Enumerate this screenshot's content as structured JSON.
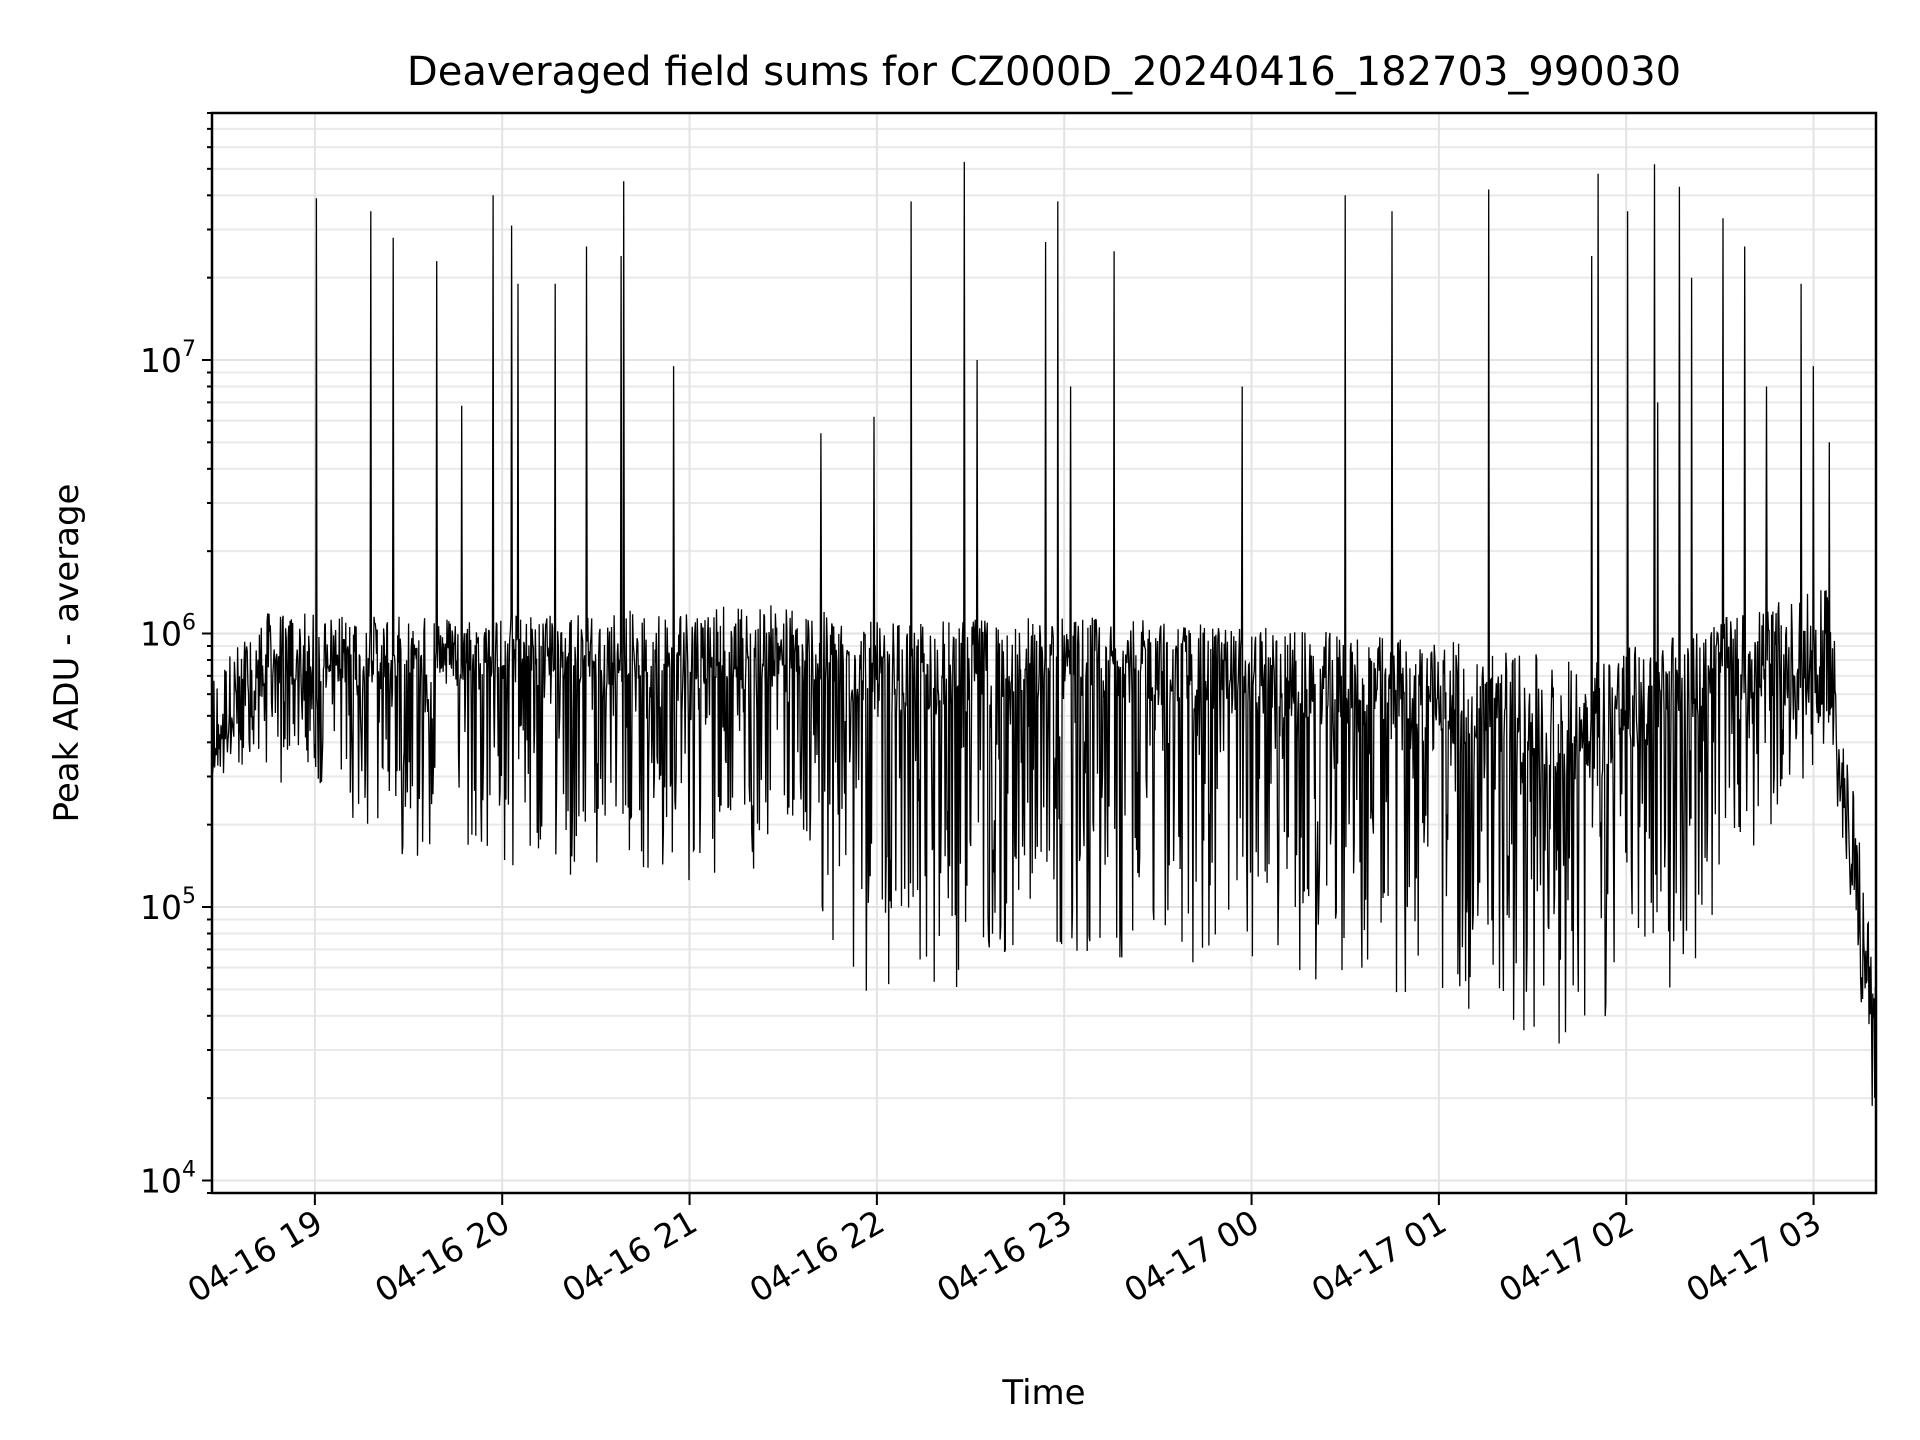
{
  "chart_data": {
    "type": "line",
    "title": "Deaveraged field sums for CZ000D_20240416_182703_990030",
    "xlabel": "Time",
    "ylabel": "Peak ADU - average",
    "yscale": "log",
    "xlim": [
      "2024-04-16T18:27:03",
      "2024-04-17T03:20:00"
    ],
    "ylim": [
      9000,
      80000000
    ],
    "grid": "on (major and minor, light gray)",
    "x_ticks": [
      "04-16 19",
      "04-16 20",
      "04-16 21",
      "04-16 22",
      "04-16 23",
      "04-17 00",
      "04-17 01",
      "04-17 02",
      "04-17 03"
    ],
    "x_tick_times": [
      "2024-04-16T19:00:00",
      "2024-04-16T20:00:00",
      "2024-04-16T21:00:00",
      "2024-04-16T22:00:00",
      "2024-04-16T23:00:00",
      "2024-04-17T00:00:00",
      "2024-04-17T01:00:00",
      "2024-04-17T02:00:00",
      "2024-04-17T03:00:00"
    ],
    "y_ticks": [
      {
        "value": 10000,
        "base": "10",
        "exp": "4"
      },
      {
        "value": 100000,
        "base": "10",
        "exp": "5"
      },
      {
        "value": 1000000,
        "base": "10",
        "exp": "6"
      },
      {
        "value": 10000000,
        "base": "10",
        "exp": "7"
      }
    ],
    "series_color": "#000000",
    "series": [
      {
        "baseline_envelope": [
          {
            "time": "2024-04-16T18:27:03",
            "median": 380000,
            "low": 280000,
            "high": 1200000
          },
          {
            "time": "2024-04-16T18:45:00",
            "median": 800000,
            "low": 300000,
            "high": 1600000
          },
          {
            "time": "2024-04-16T19:30:00",
            "median": 800000,
            "low": 150000,
            "high": 1500000
          },
          {
            "time": "2024-04-16T20:30:00",
            "median": 800000,
            "low": 120000,
            "high": 1600000
          },
          {
            "time": "2024-04-16T21:30:00",
            "median": 800000,
            "low": 130000,
            "high": 1800000
          },
          {
            "time": "2024-04-16T22:00:00",
            "median": 650000,
            "low": 40000,
            "high": 1600000
          },
          {
            "time": "2024-04-16T23:00:00",
            "median": 750000,
            "low": 70000,
            "high": 1600000
          },
          {
            "time": "2024-04-17T00:00:00",
            "median": 650000,
            "low": 55000,
            "high": 1500000
          },
          {
            "time": "2024-04-17T01:00:00",
            "median": 550000,
            "low": 45000,
            "high": 1400000
          },
          {
            "time": "2024-04-17T01:45:00",
            "median": 400000,
            "low": 28000,
            "high": 1300000
          },
          {
            "time": "2024-04-17T02:30:00",
            "median": 750000,
            "low": 70000,
            "high": 1500000
          },
          {
            "time": "2024-04-17T03:05:00",
            "median": 700000,
            "low": 400000,
            "high": 2500000
          },
          {
            "time": "2024-04-17T03:20:00",
            "median": 30000,
            "low": 14000,
            "high": 80000
          }
        ],
        "peaks": [
          {
            "time": "2024-04-16T19:00:30",
            "value": 39000000
          },
          {
            "time": "2024-04-16T19:18:00",
            "value": 35000000
          },
          {
            "time": "2024-04-16T19:25:00",
            "value": 28000000
          },
          {
            "time": "2024-04-16T19:39:00",
            "value": 23000000
          },
          {
            "time": "2024-04-16T19:47:00",
            "value": 6800000
          },
          {
            "time": "2024-04-16T19:57:00",
            "value": 40000000
          },
          {
            "time": "2024-04-16T20:03:00",
            "value": 31000000
          },
          {
            "time": "2024-04-16T20:05:00",
            "value": 19000000
          },
          {
            "time": "2024-04-16T20:17:00",
            "value": 19000000
          },
          {
            "time": "2024-04-16T20:27:00",
            "value": 26000000
          },
          {
            "time": "2024-04-16T20:38:00",
            "value": 24000000
          },
          {
            "time": "2024-04-16T20:39:00",
            "value": 45000000
          },
          {
            "time": "2024-04-16T20:55:00",
            "value": 9500000
          },
          {
            "time": "2024-04-16T21:42:00",
            "value": 5400000
          },
          {
            "time": "2024-04-16T21:59:00",
            "value": 6200000
          },
          {
            "time": "2024-04-16T22:11:00",
            "value": 38000000
          },
          {
            "time": "2024-04-16T22:28:00",
            "value": 53000000
          },
          {
            "time": "2024-04-16T22:32:00",
            "value": 10000000
          },
          {
            "time": "2024-04-16T22:54:00",
            "value": 27000000
          },
          {
            "time": "2024-04-16T22:58:00",
            "value": 38000000
          },
          {
            "time": "2024-04-16T23:02:00",
            "value": 8000000
          },
          {
            "time": "2024-04-16T23:16:00",
            "value": 25000000
          },
          {
            "time": "2024-04-16T23:57:00",
            "value": 8000000
          },
          {
            "time": "2024-04-17T00:30:00",
            "value": 40000000
          },
          {
            "time": "2024-04-17T00:45:00",
            "value": 35000000
          },
          {
            "time": "2024-04-17T01:16:00",
            "value": 42000000
          },
          {
            "time": "2024-04-17T01:49:00",
            "value": 24000000
          },
          {
            "time": "2024-04-17T01:51:00",
            "value": 48000000
          },
          {
            "time": "2024-04-17T02:00:30",
            "value": 35000000
          },
          {
            "time": "2024-04-17T02:09:00",
            "value": 52000000
          },
          {
            "time": "2024-04-17T02:10:00",
            "value": 7000000
          },
          {
            "time": "2024-04-17T02:17:00",
            "value": 43000000
          },
          {
            "time": "2024-04-17T02:21:00",
            "value": 20000000
          },
          {
            "time": "2024-04-17T02:31:00",
            "value": 33000000
          },
          {
            "time": "2024-04-17T02:38:00",
            "value": 26000000
          },
          {
            "time": "2024-04-17T02:45:00",
            "value": 8000000
          },
          {
            "time": "2024-04-17T02:56:00",
            "value": 19000000
          },
          {
            "time": "2024-04-17T03:00:00",
            "value": 9500000
          },
          {
            "time": "2024-04-17T03:05:00",
            "value": 5000000
          }
        ]
      }
    ]
  }
}
